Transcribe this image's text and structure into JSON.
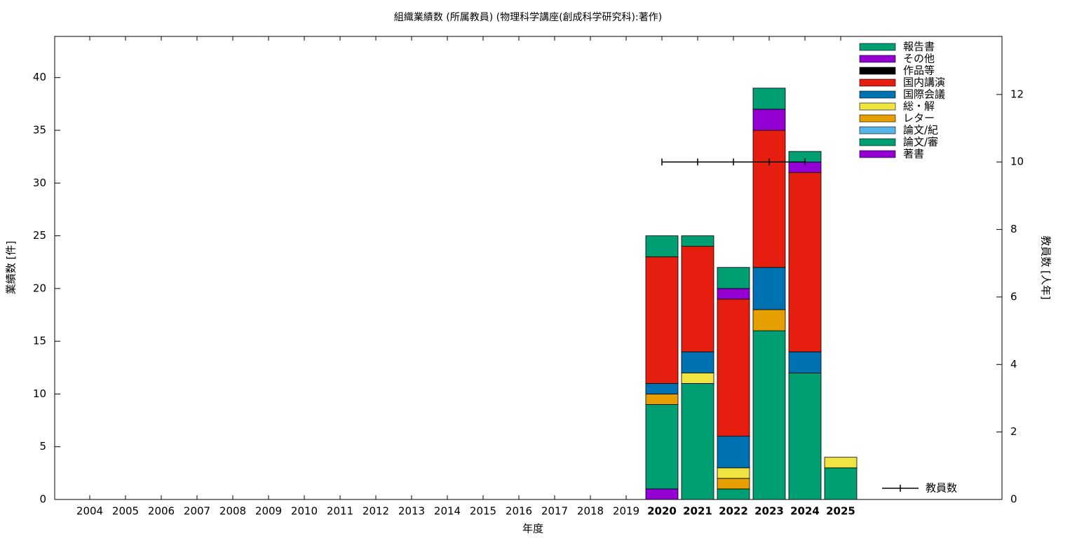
{
  "chart_data": {
    "type": "bar",
    "stacked": true,
    "title": "組織業績数 (所属教員) (物理科学講座(創成科学研究科):著作)",
    "x_label": "年度",
    "y_label": "業績数 [件]",
    "y2_label": "教員数 [人年]",
    "categories": [
      "2004",
      "2005",
      "2006",
      "2007",
      "2008",
      "2009",
      "2010",
      "2011",
      "2012",
      "2013",
      "2014",
      "2015",
      "2016",
      "2017",
      "2018",
      "2019",
      "2020",
      "2021",
      "2022",
      "2023",
      "2024",
      "2025"
    ],
    "ylim": [
      0,
      43.9
    ],
    "yticks": [
      0,
      5,
      10,
      15,
      20,
      25,
      30,
      35,
      40
    ],
    "y2lim": [
      0,
      13.72
    ],
    "y2ticks": [
      0,
      2,
      4,
      6,
      8,
      10,
      12
    ],
    "grid": false,
    "legend": "upper right",
    "series": [
      {
        "name": "著書",
        "color": "#9400d3",
        "values": [
          0,
          0,
          0,
          0,
          0,
          0,
          0,
          0,
          0,
          0,
          0,
          0,
          0,
          0,
          0,
          0,
          1,
          0,
          0,
          0,
          0,
          0
        ]
      },
      {
        "name": "論文/審",
        "color": "#009e73",
        "values": [
          0,
          0,
          0,
          0,
          0,
          0,
          0,
          0,
          0,
          0,
          0,
          0,
          0,
          0,
          0,
          0,
          8,
          11,
          1,
          16,
          12,
          3
        ]
      },
      {
        "name": "論文/紀",
        "color": "#56b4e9",
        "values": [
          0,
          0,
          0,
          0,
          0,
          0,
          0,
          0,
          0,
          0,
          0,
          0,
          0,
          0,
          0,
          0,
          0,
          0,
          0,
          0,
          0,
          0
        ]
      },
      {
        "name": "レター",
        "color": "#e69f00",
        "values": [
          0,
          0,
          0,
          0,
          0,
          0,
          0,
          0,
          0,
          0,
          0,
          0,
          0,
          0,
          0,
          0,
          1,
          0,
          1,
          2,
          0,
          0
        ]
      },
      {
        "name": "総・解",
        "color": "#f0e442",
        "values": [
          0,
          0,
          0,
          0,
          0,
          0,
          0,
          0,
          0,
          0,
          0,
          0,
          0,
          0,
          0,
          0,
          0,
          1,
          1,
          0,
          0,
          1
        ]
      },
      {
        "name": "国際会議",
        "color": "#0072b2",
        "values": [
          0,
          0,
          0,
          0,
          0,
          0,
          0,
          0,
          0,
          0,
          0,
          0,
          0,
          0,
          0,
          0,
          1,
          2,
          3,
          4,
          2,
          0
        ]
      },
      {
        "name": "国内講演",
        "color": "#e51e10",
        "values": [
          0,
          0,
          0,
          0,
          0,
          0,
          0,
          0,
          0,
          0,
          0,
          0,
          0,
          0,
          0,
          0,
          12,
          10,
          13,
          13,
          17,
          0
        ]
      },
      {
        "name": "作品等",
        "color": "#000000",
        "values": [
          0,
          0,
          0,
          0,
          0,
          0,
          0,
          0,
          0,
          0,
          0,
          0,
          0,
          0,
          0,
          0,
          0,
          0,
          0,
          0,
          0,
          0
        ]
      },
      {
        "name": "その他",
        "color": "#9400d3",
        "values": [
          0,
          0,
          0,
          0,
          0,
          0,
          0,
          0,
          0,
          0,
          0,
          0,
          0,
          0,
          0,
          0,
          0,
          0,
          1,
          2,
          1,
          0
        ]
      },
      {
        "name": "報告書",
        "color": "#009e73",
        "values": [
          0,
          0,
          0,
          0,
          0,
          0,
          0,
          0,
          0,
          0,
          0,
          0,
          0,
          0,
          0,
          0,
          2,
          1,
          2,
          2,
          1,
          0
        ]
      },
      {
        "name": "教員数",
        "type": "line",
        "axis": "y2",
        "color": "#000000",
        "values": [
          null,
          null,
          null,
          null,
          null,
          null,
          null,
          null,
          null,
          null,
          null,
          null,
          null,
          null,
          null,
          null,
          10,
          10,
          10,
          10,
          10,
          null
        ]
      }
    ]
  }
}
